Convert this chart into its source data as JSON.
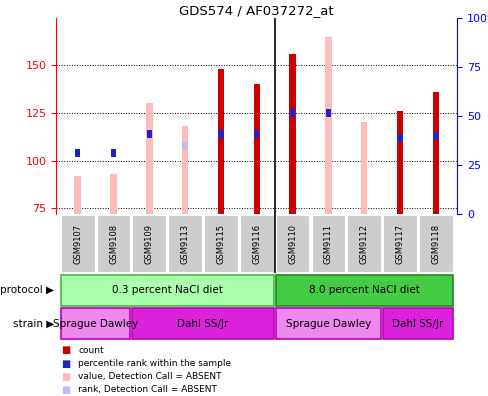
{
  "title": "GDS574 / AF037272_at",
  "samples": [
    "GSM9107",
    "GSM9108",
    "GSM9109",
    "GSM9113",
    "GSM9115",
    "GSM9116",
    "GSM9110",
    "GSM9111",
    "GSM9112",
    "GSM9117",
    "GSM9118"
  ],
  "ylim_left": [
    72,
    175
  ],
  "ylim_right": [
    0,
    100
  ],
  "yticks_left": [
    75,
    100,
    125,
    150
  ],
  "yticks_right": [
    0,
    25,
    50,
    75,
    100
  ],
  "count_color": "#cc0000",
  "rank_color": "#2222cc",
  "absent_value_color": "#ffbbbb",
  "absent_rank_color": "#bbbbff",
  "absent_value": [
    92,
    93,
    130,
    118,
    0,
    0,
    0,
    165,
    120,
    0,
    0
  ],
  "absent_rank": [
    0,
    0,
    0,
    108,
    0,
    0,
    0,
    0,
    0,
    0,
    0
  ],
  "count_value": [
    0,
    0,
    0,
    0,
    148,
    140,
    156,
    0,
    0,
    126,
    136
  ],
  "rank_value": [
    104,
    104,
    114,
    0,
    114,
    114,
    125,
    125,
    0,
    112,
    113
  ],
  "has_absent_value": [
    true,
    true,
    true,
    true,
    false,
    false,
    false,
    true,
    true,
    false,
    false
  ],
  "has_absent_rank": [
    false,
    false,
    false,
    true,
    false,
    false,
    false,
    false,
    false,
    false,
    false
  ],
  "has_count": [
    false,
    false,
    false,
    false,
    true,
    true,
    true,
    false,
    false,
    true,
    true
  ],
  "has_rank": [
    true,
    true,
    true,
    false,
    true,
    true,
    true,
    true,
    false,
    true,
    true
  ],
  "group_divider": 5.5,
  "protocol_groups": [
    {
      "label": "0.3 percent NaCl diet",
      "start": 0,
      "end": 5,
      "color": "#aaffaa",
      "edge": "#44bb44"
    },
    {
      "label": "8.0 percent NaCl diet",
      "start": 6,
      "end": 10,
      "color": "#44cc44",
      "edge": "#228822"
    }
  ],
  "strain_groups": [
    {
      "label": "Sprague Dawley",
      "start": 0,
      "end": 1,
      "color": "#ee88ee",
      "edge": "#bb00bb"
    },
    {
      "label": "Dahl SS/Jr",
      "start": 2,
      "end": 5,
      "color": "#dd22dd",
      "edge": "#bb00bb"
    },
    {
      "label": "Sprague Dawley",
      "start": 6,
      "end": 8,
      "color": "#ee88ee",
      "edge": "#bb00bb"
    },
    {
      "label": "Dahl SS/Jr",
      "start": 9,
      "end": 10,
      "color": "#dd22dd",
      "edge": "#bb00bb"
    }
  ],
  "legend_items": [
    {
      "label": "count",
      "color": "#cc0000"
    },
    {
      "label": "percentile rank within the sample",
      "color": "#2222cc"
    },
    {
      "label": "value, Detection Call = ABSENT",
      "color": "#ffbbbb"
    },
    {
      "label": "rank, Detection Call = ABSENT",
      "color": "#bbbbff"
    }
  ]
}
